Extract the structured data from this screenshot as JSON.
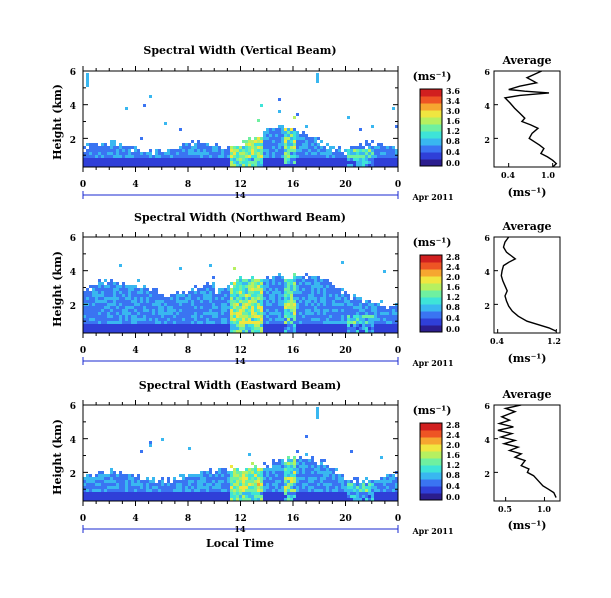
{
  "figure": {
    "xlabel": "Local Time",
    "ylabel": "Height (km)",
    "date_text": "Apr 2011",
    "colorbar_unit": "(ms⁻¹)",
    "average_xlabel": "(ms⁻¹)"
  },
  "colors": {
    "colormap": [
      "#2b1d8e",
      "#2f3fd8",
      "#3a74f2",
      "#39b7f0",
      "#3ee4d8",
      "#6ff0a0",
      "#b6f060",
      "#f0e640",
      "#f6a630",
      "#ee5424",
      "#d11f1f"
    ],
    "line": "#000000",
    "mark_blue": "#1a2ad0"
  },
  "chart_data": [
    {
      "type": "heatmap",
      "title": "Spectral Width (Vertical Beam)",
      "x_ticks": [
        "0",
        "4",
        "8",
        "12",
        "16",
        "20",
        "0"
      ],
      "x_range_hours": [
        0,
        24
      ],
      "y_ticks": [
        "6",
        "4",
        "2"
      ],
      "y_range_km": [
        0.3,
        6
      ],
      "colorbar_ticks": [
        "3.6",
        "3.4",
        "3.0",
        "1.6",
        "1.2",
        "0.8",
        "0.4",
        "0.0"
      ],
      "colorbar_range": [
        0,
        3.6
      ],
      "date_axis_label": "14",
      "average": {
        "title": "Average",
        "y_ticks": [
          "6",
          "4",
          "2"
        ],
        "x_ticks": [
          "0.4",
          "1.0"
        ],
        "xlim": [
          0.2,
          1.1
        ],
        "points": [
          [
            0.85,
            6.0
          ],
          [
            0.75,
            5.8
          ],
          [
            0.65,
            5.6
          ],
          [
            0.78,
            5.3
          ],
          [
            0.55,
            5.1
          ],
          [
            0.4,
            4.9
          ],
          [
            0.62,
            4.8
          ],
          [
            0.95,
            4.7
          ],
          [
            0.55,
            4.55
          ],
          [
            0.35,
            4.4
          ],
          [
            0.42,
            4.1
          ],
          [
            0.48,
            3.8
          ],
          [
            0.55,
            3.5
          ],
          [
            0.62,
            3.2
          ],
          [
            0.58,
            3.0
          ],
          [
            0.7,
            2.8
          ],
          [
            0.8,
            2.6
          ],
          [
            0.72,
            2.3
          ],
          [
            0.68,
            2.0
          ],
          [
            0.75,
            1.8
          ],
          [
            0.82,
            1.6
          ],
          [
            0.88,
            1.4
          ],
          [
            0.84,
            1.1
          ],
          [
            0.93,
            0.9
          ],
          [
            1.0,
            0.7
          ],
          [
            1.05,
            0.5
          ],
          [
            1.0,
            0.3
          ]
        ]
      }
    },
    {
      "type": "heatmap",
      "title": "Spectral Width (Northward Beam)",
      "x_ticks": [
        "0",
        "4",
        "8",
        "12",
        "16",
        "20",
        "0"
      ],
      "x_range_hours": [
        0,
        24
      ],
      "y_ticks": [
        "6",
        "4",
        "2"
      ],
      "y_range_km": [
        0.3,
        6
      ],
      "colorbar_ticks": [
        "2.8",
        "2.4",
        "2.0",
        "1.6",
        "1.2",
        "0.8",
        "0.4",
        "0.0"
      ],
      "colorbar_range": [
        0,
        2.8
      ],
      "date_axis_label": "14",
      "average": {
        "title": "Average",
        "y_ticks": [
          "6",
          "4",
          "2"
        ],
        "x_ticks": [
          "0.4",
          "1.2"
        ],
        "xlim": [
          0.35,
          1.25
        ],
        "points": [
          [
            0.55,
            6.0
          ],
          [
            0.5,
            5.7
          ],
          [
            0.48,
            5.4
          ],
          [
            0.52,
            5.1
          ],
          [
            0.58,
            4.9
          ],
          [
            0.64,
            4.7
          ],
          [
            0.55,
            4.5
          ],
          [
            0.48,
            4.3
          ],
          [
            0.46,
            4.0
          ],
          [
            0.45,
            3.7
          ],
          [
            0.47,
            3.4
          ],
          [
            0.5,
            3.1
          ],
          [
            0.53,
            2.8
          ],
          [
            0.5,
            2.5
          ],
          [
            0.52,
            2.2
          ],
          [
            0.55,
            1.9
          ],
          [
            0.6,
            1.6
          ],
          [
            0.68,
            1.3
          ],
          [
            0.8,
            1.0
          ],
          [
            0.95,
            0.8
          ],
          [
            1.1,
            0.6
          ],
          [
            1.2,
            0.4
          ]
        ]
      }
    },
    {
      "type": "heatmap",
      "title": "Spectral Width (Eastward Beam)",
      "x_ticks": [
        "0",
        "4",
        "8",
        "12",
        "16",
        "20",
        "0"
      ],
      "x_range_hours": [
        0,
        24
      ],
      "y_ticks": [
        "6",
        "4",
        "2"
      ],
      "y_range_km": [
        0.3,
        6
      ],
      "colorbar_ticks": [
        "2.8",
        "2.4",
        "2.0",
        "1.6",
        "1.2",
        "0.8",
        "0.4",
        "0.0"
      ],
      "colorbar_range": [
        0,
        2.8
      ],
      "date_axis_label": "14",
      "average": {
        "title": "Average",
        "y_ticks": [
          "6",
          "4",
          "2"
        ],
        "x_ticks": [
          "0.5",
          "1.0"
        ],
        "xlim": [
          0.35,
          1.2
        ],
        "points": [
          [
            0.7,
            6.0
          ],
          [
            0.5,
            5.8
          ],
          [
            0.62,
            5.6
          ],
          [
            0.45,
            5.3
          ],
          [
            0.55,
            5.1
          ],
          [
            0.42,
            4.9
          ],
          [
            0.6,
            4.7
          ],
          [
            0.4,
            4.5
          ],
          [
            0.58,
            4.3
          ],
          [
            0.44,
            4.1
          ],
          [
            0.62,
            3.9
          ],
          [
            0.48,
            3.7
          ],
          [
            0.66,
            3.5
          ],
          [
            0.55,
            3.3
          ],
          [
            0.7,
            3.1
          ],
          [
            0.62,
            2.9
          ],
          [
            0.75,
            2.7
          ],
          [
            0.7,
            2.4
          ],
          [
            0.8,
            2.2
          ],
          [
            0.78,
            2.0
          ],
          [
            0.86,
            1.8
          ],
          [
            0.92,
            1.5
          ],
          [
            0.98,
            1.2
          ],
          [
            1.05,
            1.0
          ],
          [
            1.12,
            0.8
          ],
          [
            1.15,
            0.5
          ]
        ]
      }
    }
  ]
}
